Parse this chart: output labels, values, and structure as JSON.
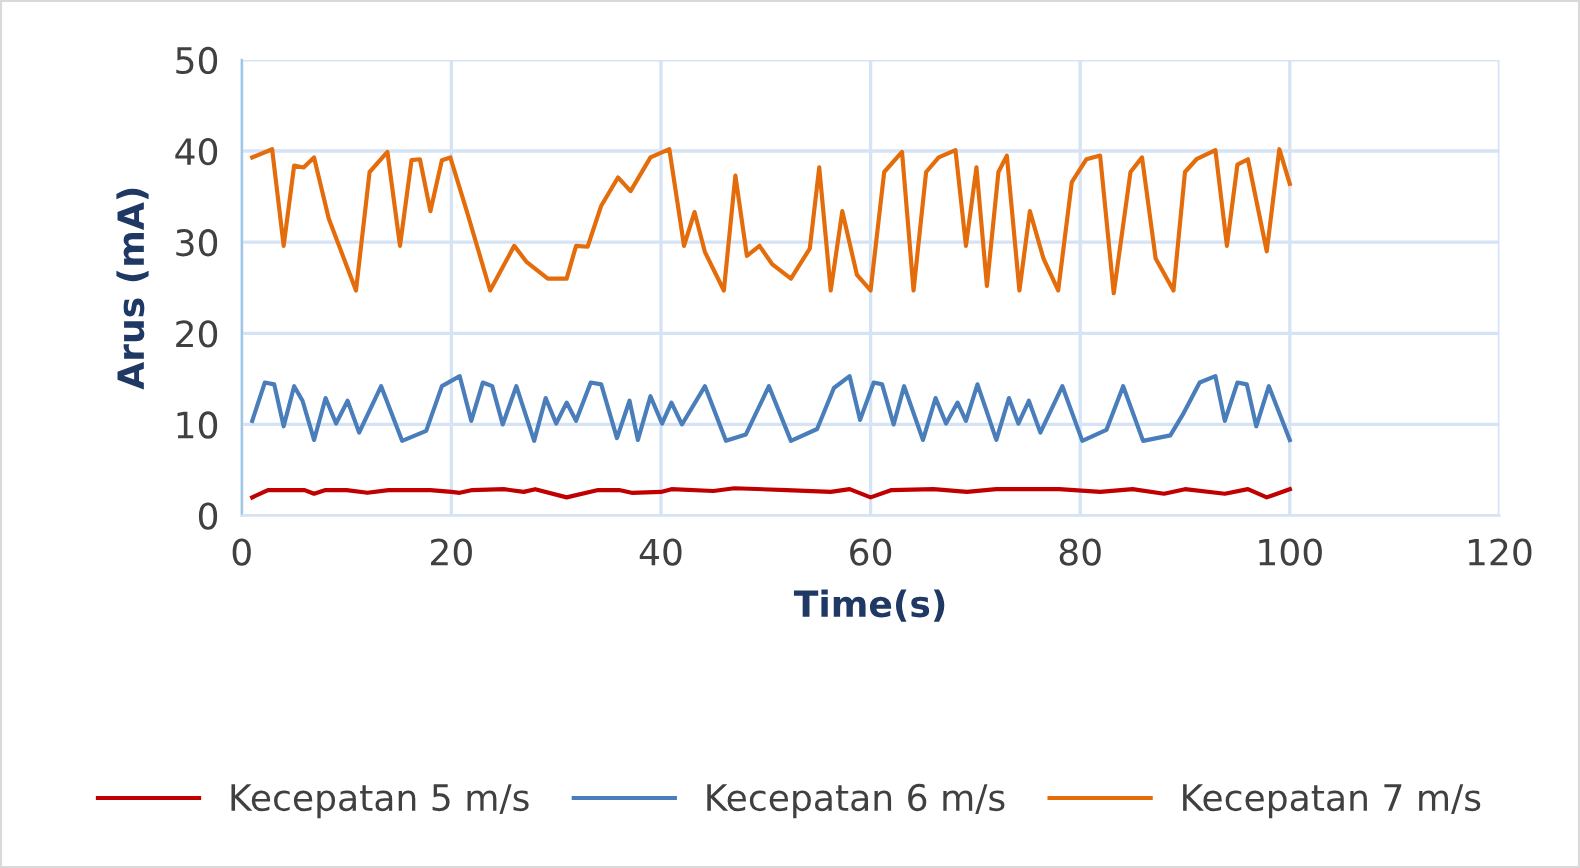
{
  "chart_data": {
    "type": "line",
    "xlabel": "Time(s)",
    "ylabel": "Arus (mA)",
    "xlim": [
      0,
      120
    ],
    "xticks": [
      0,
      20,
      40,
      60,
      80,
      100,
      120
    ],
    "ylim": [
      0,
      50
    ],
    "yticks": [
      0,
      10,
      20,
      30,
      40,
      50
    ],
    "grid": true,
    "legend": "bottom",
    "marker": "none",
    "line_style": "solid",
    "series": [
      {
        "name": "Kecepatan 5 m/s",
        "color": "#c00000",
        "x": [
          1,
          2.5,
          6,
          6.9,
          8,
          10,
          12,
          14,
          18,
          20,
          20.8,
          22,
          25,
          26.9,
          28,
          31,
          34,
          36,
          37.2,
          40,
          41,
          45,
          47,
          52,
          56.2,
          58,
          60,
          62,
          66,
          69.2,
          72,
          78,
          81.9,
          85,
          88,
          90,
          93.8,
          96,
          97.8,
          100
        ],
        "values": [
          2.0,
          2.8,
          2.8,
          2.4,
          2.8,
          2.8,
          2.5,
          2.8,
          2.8,
          2.6,
          2.5,
          2.8,
          2.9,
          2.6,
          2.9,
          2.0,
          2.8,
          2.8,
          2.5,
          2.6,
          2.9,
          2.7,
          3.0,
          2.8,
          2.6,
          2.9,
          2.0,
          2.8,
          2.9,
          2.6,
          2.9,
          2.9,
          2.6,
          2.9,
          2.4,
          2.9,
          2.4,
          2.9,
          2.0,
          2.9
        ]
      },
      {
        "name": "Kecepatan 6 m/s",
        "color": "#4a7ebb",
        "x": [
          1,
          2.2,
          3.1,
          4,
          5,
          5.8,
          6.9,
          8,
          9,
          10.1,
          11.2,
          13.3,
          15.3,
          17.6,
          19.1,
          20.8,
          21.9,
          23,
          23.9,
          24.9,
          26.2,
          27.9,
          29,
          30,
          31,
          31.9,
          33.3,
          34.3,
          35.8,
          37,
          37.8,
          39,
          40.1,
          41,
          42,
          44.2,
          46.2,
          48.1,
          50.3,
          52.4,
          54.9,
          56.5,
          58,
          59,
          60.3,
          61.1,
          62.2,
          63.2,
          65,
          66.2,
          67.2,
          68.3,
          69.1,
          70.2,
          72,
          73.2,
          74.1,
          75.1,
          76.2,
          78.3,
          80.2,
          82.5,
          84.1,
          86,
          88.6,
          89.8,
          91.4,
          92.9,
          93.8,
          95,
          95.9,
          96.8,
          98,
          100
        ],
        "values": [
          10.4,
          14.6,
          14.4,
          9.8,
          14.2,
          12.6,
          8.3,
          12.9,
          10.1,
          12.6,
          9.1,
          14.2,
          8.2,
          9.3,
          14.2,
          15.3,
          10.4,
          14.6,
          14.2,
          10.0,
          14.2,
          8.2,
          12.9,
          10.1,
          12.4,
          10.4,
          14.6,
          14.4,
          8.5,
          12.6,
          8.3,
          13.1,
          10.1,
          12.4,
          10.0,
          14.2,
          8.2,
          8.9,
          14.2,
          8.2,
          9.5,
          14.0,
          15.3,
          10.5,
          14.6,
          14.4,
          10.0,
          14.2,
          8.3,
          12.9,
          10.1,
          12.4,
          10.4,
          14.4,
          8.3,
          12.9,
          10.1,
          12.6,
          9.1,
          14.2,
          8.2,
          9.4,
          14.2,
          8.2,
          8.8,
          11.1,
          14.6,
          15.3,
          10.4,
          14.6,
          14.4,
          9.8,
          14.2,
          8.3
        ]
      },
      {
        "name": "Kecepatan 7 m/s",
        "color": "#e46c0a",
        "x": [
          1,
          2.9,
          4,
          5,
          5.9,
          6.9,
          8.3,
          10.9,
          12.2,
          13.9,
          15.1,
          16.2,
          17,
          18,
          19.1,
          19.9,
          21.5,
          23.7,
          26,
          27.2,
          29.2,
          31,
          31.9,
          33,
          34.3,
          35.9,
          37.1,
          39,
          40.8,
          42.2,
          43.2,
          44.2,
          46,
          47.1,
          48.2,
          49.4,
          50.6,
          52.4,
          54.2,
          55.1,
          56.2,
          57.3,
          58.7,
          60,
          61.3,
          63,
          64.1,
          65.3,
          66.5,
          68.1,
          69.1,
          70.1,
          71.1,
          72.2,
          73,
          74.2,
          75.2,
          76.5,
          77.9,
          79.2,
          80.6,
          81.9,
          83.2,
          84.8,
          85.9,
          87.2,
          88.9,
          90,
          91.1,
          92.9,
          94,
          95,
          96,
          97.8,
          99,
          100
        ],
        "values": [
          39.3,
          40.2,
          29.6,
          38.4,
          38.2,
          39.3,
          32.6,
          24.7,
          37.7,
          39.9,
          29.6,
          39.0,
          39.1,
          33.4,
          39.0,
          39.3,
          33.3,
          24.7,
          29.6,
          27.8,
          26.0,
          26.0,
          29.6,
          29.5,
          34.0,
          37.1,
          35.6,
          39.3,
          40.2,
          29.6,
          33.3,
          28.9,
          24.7,
          37.3,
          28.5,
          29.6,
          27.6,
          26.0,
          29.3,
          38.2,
          24.7,
          33.4,
          26.4,
          24.7,
          37.7,
          39.9,
          24.7,
          37.7,
          39.3,
          40.1,
          29.6,
          38.2,
          25.2,
          37.7,
          39.5,
          24.7,
          33.4,
          28.2,
          24.7,
          36.6,
          39.1,
          39.5,
          24.4,
          37.7,
          39.3,
          28.2,
          24.7,
          37.7,
          39.1,
          40.1,
          29.6,
          38.5,
          39.1,
          29.0,
          40.2,
          36.4
        ]
      }
    ]
  }
}
